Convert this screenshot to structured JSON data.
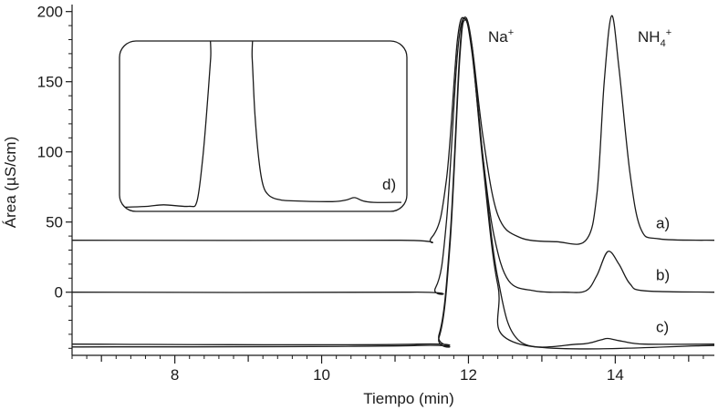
{
  "chart_data": {
    "type": "line",
    "xlabel": "Tiempo (min)",
    "ylabel": "Área (µS/cm)",
    "xlim": [
      6.6,
      15.35
    ],
    "ylim": [
      -45,
      205
    ],
    "x_ticks": [
      8,
      10,
      12,
      14
    ],
    "y_ticks": [
      0,
      50,
      100,
      150,
      200
    ],
    "peak_labels": {
      "na": "Na",
      "na_sup": "+",
      "nh4": "NH",
      "nh4_sub": "4",
      "nh4_sup": "+"
    },
    "series": [
      {
        "id": "a",
        "label": "a)",
        "x": [
          6.6,
          11.0,
          11.5,
          11.7,
          11.85,
          11.95,
          12.05,
          12.2,
          12.4,
          12.7,
          13.2,
          13.6,
          13.75,
          13.85,
          13.95,
          14.05,
          14.2,
          14.35,
          14.6,
          15.35
        ],
        "values": [
          37,
          37,
          39,
          80,
          180,
          195,
          175,
          110,
          55,
          39,
          36,
          37,
          70,
          150,
          197,
          160,
          85,
          45,
          38,
          37
        ]
      },
      {
        "id": "b",
        "label": "b)",
        "x": [
          6.6,
          11.2,
          11.55,
          11.7,
          11.85,
          11.95,
          12.05,
          12.2,
          12.35,
          12.55,
          12.9,
          13.3,
          13.6,
          13.75,
          13.9,
          14.05,
          14.2,
          14.4,
          15.35
        ],
        "values": [
          0,
          0,
          3,
          50,
          170,
          195,
          170,
          95,
          40,
          8,
          1,
          0,
          1,
          12,
          29,
          20,
          6,
          1,
          0
        ]
      },
      {
        "id": "c",
        "label": "c)",
        "x": [
          6.6,
          11.3,
          11.6,
          11.75,
          11.88,
          11.95,
          12.05,
          12.2,
          12.4,
          12.7,
          13.5,
          13.8,
          13.9,
          14.1,
          14.4,
          15.35
        ],
        "values": [
          -37,
          -37,
          -30,
          40,
          170,
          196,
          175,
          95,
          10,
          -35,
          -37,
          -34,
          -33,
          -35,
          -37,
          -37
        ]
      },
      {
        "id": "c2",
        "label": "",
        "x": [
          6.6,
          11.3,
          11.6,
          11.75,
          11.88,
          11.95,
          12.05,
          12.2,
          12.4,
          12.7,
          15.35
        ],
        "values": [
          -39,
          -38,
          -32,
          35,
          165,
          194,
          172,
          90,
          5,
          -37,
          -38
        ]
      }
    ],
    "inset": {
      "label": "d)",
      "x": [
        0,
        0.08,
        0.14,
        0.23,
        0.26,
        0.28,
        0.295,
        0.31,
        0.32,
        0.45,
        0.46,
        0.47,
        0.485,
        0.5,
        0.52,
        0.55,
        0.6,
        0.75,
        0.8,
        0.83,
        0.86,
        0.9,
        1.0
      ],
      "values": [
        0.015,
        0.02,
        0.03,
        0.02,
        0.05,
        0.3,
        0.6,
        0.95,
        1.2,
        1.2,
        0.95,
        0.6,
        0.3,
        0.15,
        0.09,
        0.065,
        0.055,
        0.05,
        0.06,
        0.075,
        0.055,
        0.045,
        0.045
      ]
    }
  }
}
